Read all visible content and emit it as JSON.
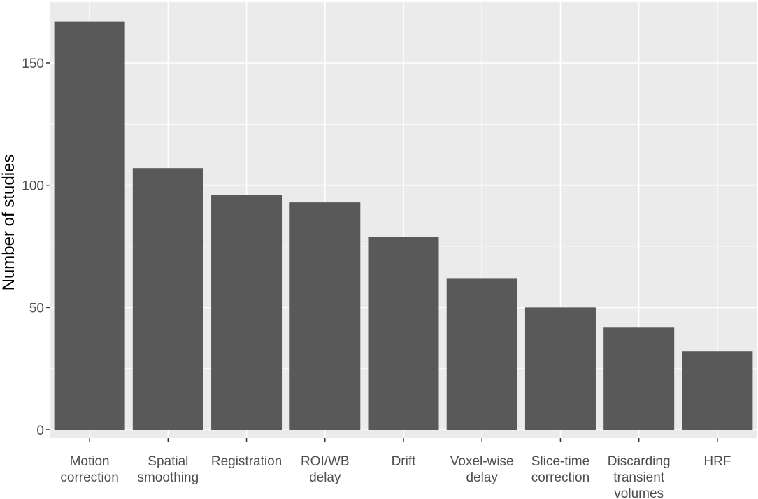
{
  "chart_data": {
    "type": "bar",
    "title": "",
    "xlabel": "",
    "ylabel": "Number of studies",
    "categories": [
      [
        "Motion",
        "correction"
      ],
      [
        "Spatial",
        "smoothing"
      ],
      [
        "Registration"
      ],
      [
        "ROI/WB",
        "delay"
      ],
      [
        "Drift"
      ],
      [
        "Voxel-wise",
        "delay"
      ],
      [
        "Slice-time",
        "correction"
      ],
      [
        "Discarding",
        "transient",
        "volumes"
      ],
      [
        "HRF"
      ]
    ],
    "values": [
      167,
      107,
      96,
      93,
      79,
      62,
      50,
      42,
      32
    ],
    "ylim": [
      0,
      175
    ],
    "yticks": [
      0,
      50,
      100,
      150
    ],
    "grid": true,
    "legend": "none",
    "colors": {
      "bar": "#595959",
      "panel": "#ebebeb",
      "grid": "#ffffff",
      "tick_text": "#4d4d4d",
      "tick_mark": "#333333"
    }
  }
}
